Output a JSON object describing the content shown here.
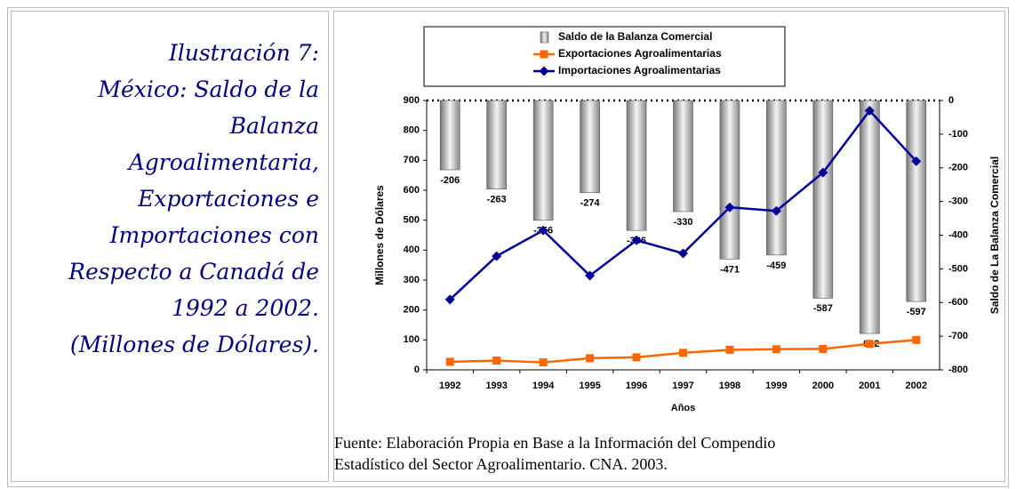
{
  "caption": [
    "Ilustración 7:",
    "México: Saldo de la",
    "Balanza",
    "Agroalimentaria,",
    "Exportaciones e",
    "Importaciones con",
    "Respecto a Canadá de",
    "1992 a 2002.",
    "(Millones de Dólares)."
  ],
  "chart_data": {
    "type": "bar",
    "xlabel": "Años",
    "ylabel": "Millones de Dólares",
    "y2label": "Saldo de La Balanza Comercial",
    "categories": [
      "1992",
      "1993",
      "1994",
      "1995",
      "1996",
      "1997",
      "1998",
      "1999",
      "2000",
      "2001",
      "2002"
    ],
    "series": [
      {
        "name": "Saldo de la Balanza Comercial",
        "type": "bar",
        "axis": "y2",
        "color": "#b0b0b0",
        "values": [
          -206,
          -263,
          -356,
          -274,
          -386,
          -330,
          -471,
          -459,
          -587,
          -692,
          -597
        ]
      },
      {
        "name": "Exportaciones Agroalimentarias",
        "type": "line",
        "color": "#ff6600",
        "values": [
          27,
          31,
          25,
          39,
          42,
          57,
          67,
          69,
          70,
          87,
          100
        ]
      },
      {
        "name": "Importaciones Agroalimentarias",
        "type": "line",
        "color": "#000099",
        "values": [
          235,
          380,
          466,
          315,
          433,
          389,
          543,
          531,
          659,
          866,
          697
        ]
      }
    ],
    "ylim": [
      0,
      900
    ],
    "yticks": [
      0,
      100,
      200,
      300,
      400,
      500,
      600,
      700,
      800,
      900
    ],
    "y2lim": [
      -800,
      0
    ],
    "y2ticks": [
      0,
      -100,
      -200,
      -300,
      -400,
      -500,
      -600,
      -700,
      -800
    ]
  },
  "source": [
    "Fuente: Elaboración Propia en Base a la Información del Compendio",
    "Estadístico del Sector Agroalimentario. CNA. 2003."
  ]
}
